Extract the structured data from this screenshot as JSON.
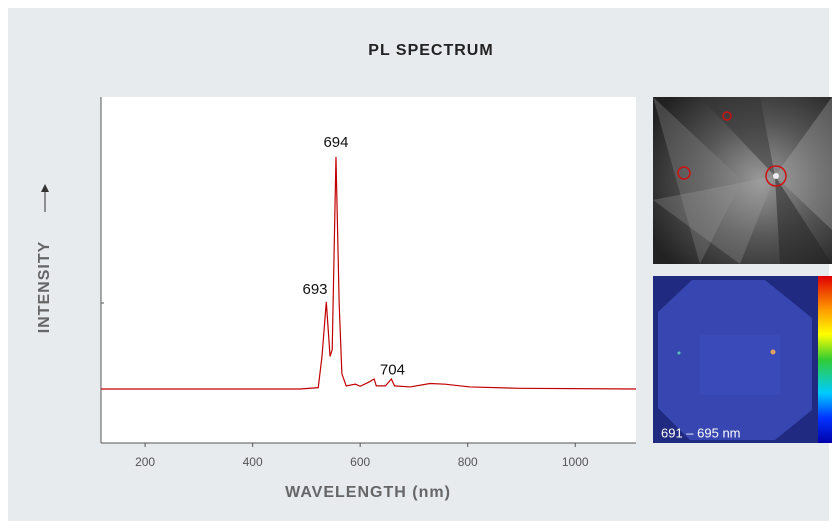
{
  "map_label": "691 – 695 nm",
  "chart_data": {
    "type": "line",
    "title": "PL SPECTRUM",
    "x_label": "WAVELENGTH (nm)",
    "y_label": "INTENSITY",
    "xlim": [
      118,
      1113
    ],
    "xticks": [
      200,
      400,
      600,
      800,
      1000
    ],
    "ylim": [
      0,
      100
    ],
    "series": [
      {
        "name": "PL spectrum",
        "color": "#c00000",
        "x": [
          118,
          488,
          522,
          529,
          537,
          544,
          548,
          555,
          561,
          566,
          574,
          591,
          600,
          615,
          626,
          630,
          647,
          658,
          664,
          693,
          730,
          758,
          804,
          897,
          1113
        ],
        "values": [
          15.6,
          15.6,
          16,
          25,
          40.8,
          25,
          27,
          82.7,
          40,
          20,
          16.5,
          17,
          16.4,
          17.5,
          18.5,
          16.5,
          16.5,
          18.5,
          16.5,
          16.2,
          17.2,
          17,
          16.2,
          15.8,
          15.6
        ]
      }
    ],
    "annotations": [
      {
        "text": "694",
        "x": 555,
        "y": 86.7
      },
      {
        "text": "693",
        "x": 516,
        "y": 44.2
      },
      {
        "text": "704",
        "x": 660,
        "y": 21
      }
    ]
  }
}
